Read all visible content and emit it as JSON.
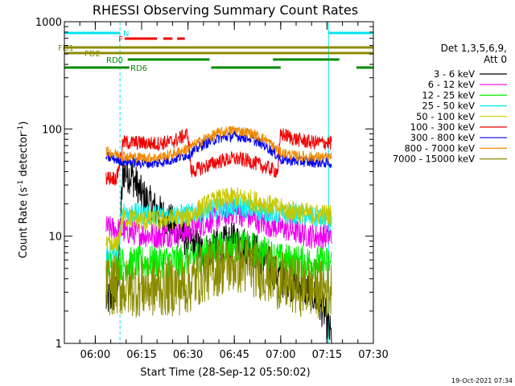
{
  "chart_data": {
    "type": "line",
    "title": "RHESSI Observing Summary Count Rates",
    "xlabel": "Start Time (28-Sep-12 05:50:02)",
    "ylabel_main": "Count Rate (s",
    "ylabel_sup1": "-1",
    "ylabel_mid": " detector",
    "ylabel_sup2": "-1",
    "ylabel_end": ")",
    "yscale": "log",
    "ylim": [
      1,
      1000
    ],
    "xlim_min": [
      0,
      100
    ],
    "xticks": [
      {
        "m": 10,
        "label": "06:00"
      },
      {
        "m": 25,
        "label": "06:15"
      },
      {
        "m": 40,
        "label": "06:30"
      },
      {
        "m": 55,
        "label": "06:45"
      },
      {
        "m": 70,
        "label": "07:00"
      },
      {
        "m": 85,
        "label": "07:15"
      },
      {
        "m": 100,
        "label": "07:30"
      }
    ],
    "yticks": [
      {
        "v": 1,
        "label": "1"
      },
      {
        "v": 10,
        "label": "10"
      },
      {
        "v": 100,
        "label": "100"
      },
      {
        "v": 1000,
        "label": "1000"
      }
    ],
    "timestamp": "19-Oct-2021 07:34",
    "legend": {
      "header1": "Det 1,3,5,6,9,",
      "header2": "Att 0",
      "position": "right"
    },
    "flags": [
      {
        "label": "N",
        "color": "#00e5ee",
        "segments": [
          [
            0,
            18
          ],
          [
            85.5,
            100
          ]
        ]
      },
      {
        "label": "F",
        "color": "#ee0000",
        "segments": [
          [
            19.5,
            30
          ],
          [
            32,
            35
          ],
          [
            36.5,
            39
          ]
        ]
      },
      {
        "label": "FD1",
        "color": "#8b8b00",
        "segments": [
          [
            0,
            100
          ]
        ]
      },
      {
        "label": "FD2",
        "color": "#8b8b00",
        "segments": [
          [
            0,
            100
          ]
        ]
      },
      {
        "label": "RD0",
        "color": "#008b00",
        "segments": [
          [
            20.5,
            47
          ],
          [
            67.5,
            89
          ]
        ]
      },
      {
        "label": "RD6",
        "color": "#008b00",
        "segments": [
          [
            0,
            21
          ],
          [
            47.5,
            70
          ],
          [
            94.5,
            100
          ]
        ]
      }
    ],
    "vlines_solid": [
      0,
      85.5
    ],
    "vlines_dashed": [
      18,
      100
    ],
    "series": [
      {
        "name": "3 - 6 keV",
        "color": "#000000",
        "kind": "decay",
        "start": 13.5,
        "end": 86.5,
        "values": [
          [
            13.5,
            2.5
          ],
          [
            17,
            3.0
          ],
          [
            19,
            40
          ],
          [
            22,
            36
          ],
          [
            25,
            24
          ],
          [
            30,
            17
          ],
          [
            35,
            13
          ],
          [
            40,
            9
          ],
          [
            45,
            7
          ],
          [
            50,
            8
          ],
          [
            55,
            9
          ],
          [
            60,
            8
          ],
          [
            65,
            6
          ],
          [
            70,
            4
          ],
          [
            75,
            3.5
          ],
          [
            80,
            3.0
          ],
          [
            84,
            2.0
          ],
          [
            86.5,
            1.1
          ]
        ]
      },
      {
        "name": "6 - 12 keV",
        "color": "#ee00ee",
        "kind": "envelope",
        "start": 13.5,
        "end": 86.5,
        "values": [
          [
            13.5,
            12
          ],
          [
            20,
            11
          ],
          [
            30,
            10
          ],
          [
            40,
            11
          ],
          [
            45,
            13
          ],
          [
            50,
            15
          ],
          [
            55,
            17
          ],
          [
            60,
            15
          ],
          [
            65,
            13
          ],
          [
            70,
            12
          ],
          [
            75,
            11
          ],
          [
            80,
            10
          ],
          [
            86.5,
            10
          ]
        ]
      },
      {
        "name": "12 - 25 keV",
        "color": "#00ee00",
        "kind": "envelope",
        "start": 13.5,
        "end": 86.5,
        "values": [
          [
            13.5,
            5.5
          ],
          [
            20,
            5.5
          ],
          [
            30,
            5.8
          ],
          [
            40,
            6.0
          ],
          [
            45,
            7.0
          ],
          [
            50,
            7.8
          ],
          [
            55,
            8.0
          ],
          [
            60,
            7.8
          ],
          [
            65,
            7.0
          ],
          [
            70,
            6.0
          ],
          [
            75,
            5.8
          ],
          [
            80,
            5.7
          ],
          [
            86.5,
            5.6
          ]
        ]
      },
      {
        "name": "25 - 50 keV",
        "color": "#00eeee",
        "kind": "envelope",
        "start": 13.5,
        "end": 86.5,
        "values": [
          [
            13.5,
            7
          ],
          [
            17,
            7
          ],
          [
            19,
            17
          ],
          [
            25,
            16
          ],
          [
            30,
            16
          ],
          [
            40,
            16
          ],
          [
            45,
            17
          ],
          [
            50,
            18
          ],
          [
            55,
            19
          ],
          [
            60,
            18
          ],
          [
            65,
            17
          ],
          [
            70,
            16
          ],
          [
            75,
            16
          ],
          [
            80,
            15
          ],
          [
            86.5,
            14
          ]
        ]
      },
      {
        "name": "50 - 100 keV",
        "color": "#c8c800",
        "kind": "envelope",
        "start": 13.5,
        "end": 86.5,
        "values": [
          [
            13.5,
            8
          ],
          [
            17,
            8
          ],
          [
            19,
            15
          ],
          [
            25,
            14
          ],
          [
            30,
            14
          ],
          [
            40,
            15
          ],
          [
            45,
            19
          ],
          [
            50,
            22
          ],
          [
            55,
            23
          ],
          [
            60,
            22
          ],
          [
            65,
            20
          ],
          [
            70,
            18
          ],
          [
            75,
            17
          ],
          [
            80,
            16
          ],
          [
            86.5,
            16
          ]
        ]
      },
      {
        "name": "100 - 300 keV",
        "color": "#ee0000",
        "kind": "envelope",
        "start": 13.5,
        "end": 86.5,
        "values": [
          [
            13.5,
            35
          ],
          [
            17,
            35
          ],
          [
            19,
            75
          ],
          [
            25,
            74
          ],
          [
            30,
            73
          ],
          [
            35,
            76
          ],
          [
            40,
            90
          ],
          [
            41,
            40
          ],
          [
            45,
            44
          ],
          [
            50,
            50
          ],
          [
            55,
            53
          ],
          [
            60,
            50
          ],
          [
            65,
            44
          ],
          [
            69,
            40
          ],
          [
            70,
            90
          ],
          [
            75,
            80
          ],
          [
            80,
            75
          ],
          [
            86.5,
            74
          ]
        ]
      },
      {
        "name": "300 - 800 keV",
        "color": "#0000ee",
        "kind": "envelope",
        "start": 13.5,
        "end": 86.5,
        "values": [
          [
            13.5,
            55
          ],
          [
            19,
            50
          ],
          [
            25,
            48
          ],
          [
            30,
            48
          ],
          [
            35,
            52
          ],
          [
            40,
            58
          ],
          [
            41,
            60
          ],
          [
            45,
            72
          ],
          [
            50,
            82
          ],
          [
            55,
            86
          ],
          [
            60,
            82
          ],
          [
            65,
            70
          ],
          [
            69,
            56
          ],
          [
            70,
            52
          ],
          [
            75,
            50
          ],
          [
            80,
            49
          ],
          [
            86.5,
            48
          ]
        ]
      },
      {
        "name": "800 - 7000 keV",
        "color": "#ee8800",
        "kind": "envelope",
        "start": 13.5,
        "end": 86.5,
        "values": [
          [
            13.5,
            62
          ],
          [
            19,
            56
          ],
          [
            25,
            54
          ],
          [
            30,
            54
          ],
          [
            35,
            58
          ],
          [
            40,
            66
          ],
          [
            41,
            68
          ],
          [
            45,
            80
          ],
          [
            50,
            92
          ],
          [
            55,
            98
          ],
          [
            60,
            92
          ],
          [
            65,
            80
          ],
          [
            69,
            64
          ],
          [
            70,
            60
          ],
          [
            75,
            56
          ],
          [
            80,
            55
          ],
          [
            86.5,
            54
          ]
        ]
      },
      {
        "name": "7000 - 15000 keV",
        "color": "#8b8b00",
        "kind": "envelope",
        "start": 13.5,
        "end": 86.5,
        "values": [
          [
            13.5,
            3.5
          ],
          [
            20,
            3.3
          ],
          [
            30,
            3.3
          ],
          [
            40,
            3.5
          ],
          [
            45,
            4.5
          ],
          [
            50,
            5.2
          ],
          [
            55,
            5.5
          ],
          [
            60,
            5.2
          ],
          [
            65,
            4.6
          ],
          [
            70,
            3.8
          ],
          [
            75,
            3.4
          ],
          [
            80,
            3.3
          ],
          [
            86.5,
            3.2
          ]
        ]
      }
    ]
  }
}
